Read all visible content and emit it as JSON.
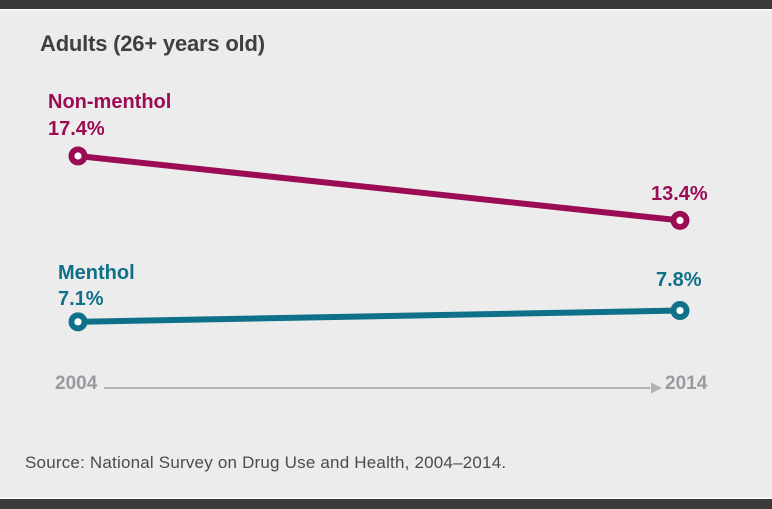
{
  "chart_data": {
    "type": "line",
    "title": "Adults (26+ years old)",
    "x": [
      2004,
      2014
    ],
    "x_tick_labels": [
      "2004",
      "2014"
    ],
    "series": [
      {
        "name": "Non-menthol",
        "values": [
          17.4,
          13.4
        ],
        "value_labels": [
          "17.4%",
          "13.4%"
        ],
        "color": "#9c0c55"
      },
      {
        "name": "Menthol",
        "values": [
          7.1,
          7.8
        ],
        "value_labels": [
          "7.1%",
          "7.8%"
        ],
        "color": "#0f7089"
      }
    ],
    "ylabel": "",
    "xlabel": "",
    "ylim": [
      0,
      20
    ],
    "grid": false,
    "legend_position": "inline-series-labels",
    "x_axis_arrow": true
  },
  "footer": {
    "source": "Source: National Survey on Drug Use and Health, 2004–2014."
  },
  "colors": {
    "background": "#ececec",
    "frame_bar": "#3b3b3b",
    "axis": "#b2b2b2",
    "tick_label": "#9a9aa0",
    "title_text": "#3f3f3f",
    "source_text": "#4b4b4b",
    "non_menthol": "#9c0c55",
    "menthol": "#0f7089",
    "marker_hole": "#ffffff"
  }
}
